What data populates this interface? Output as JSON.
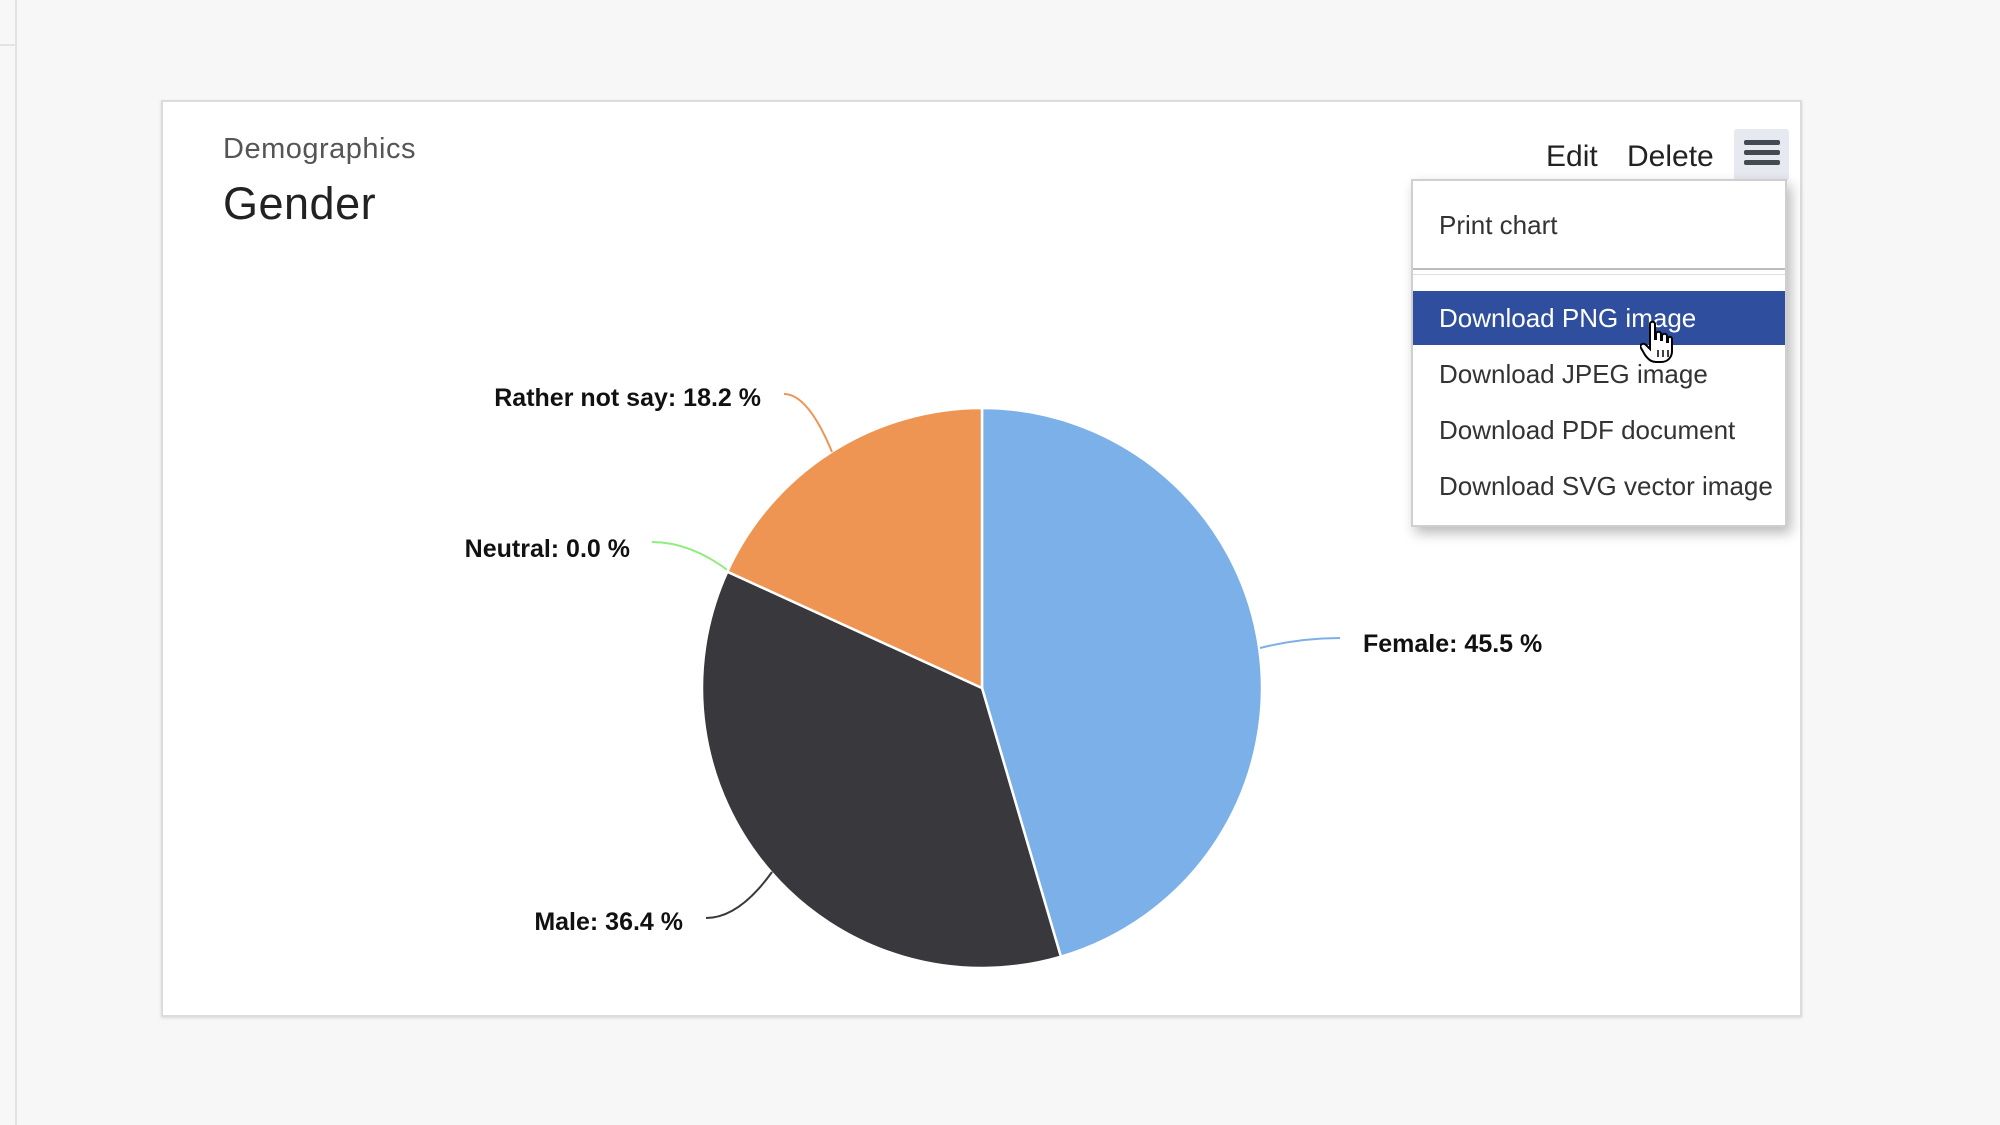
{
  "card": {
    "subtitle": "Demographics",
    "title": "Gender"
  },
  "actions": {
    "edit_label": "Edit",
    "delete_label": "Delete",
    "menu_icon": "hamburger-icon"
  },
  "export_menu": {
    "items": [
      {
        "label": "Print chart"
      },
      {
        "label": "Download PNG image",
        "highlighted": true
      },
      {
        "label": "Download JPEG image"
      },
      {
        "label": "Download PDF document"
      },
      {
        "label": "Download SVG vector image"
      }
    ],
    "highlight_color": "#2f4f9e"
  },
  "chart_data": {
    "type": "pie",
    "series": [
      {
        "name": "Female",
        "value": 45.5,
        "label": "Female: 45.5 %",
        "color": "#7cb0e8"
      },
      {
        "name": "Male",
        "value": 36.4,
        "label": "Male: 36.4 %",
        "color": "#38383d"
      },
      {
        "name": "Neutral",
        "value": 0.0,
        "label": "Neutral: 0.0 %",
        "color": "#90ed7d"
      },
      {
        "name": "Rather not say",
        "value": 18.2,
        "label": "Rather not say: 18.2 %",
        "color": "#ee9553"
      }
    ]
  }
}
